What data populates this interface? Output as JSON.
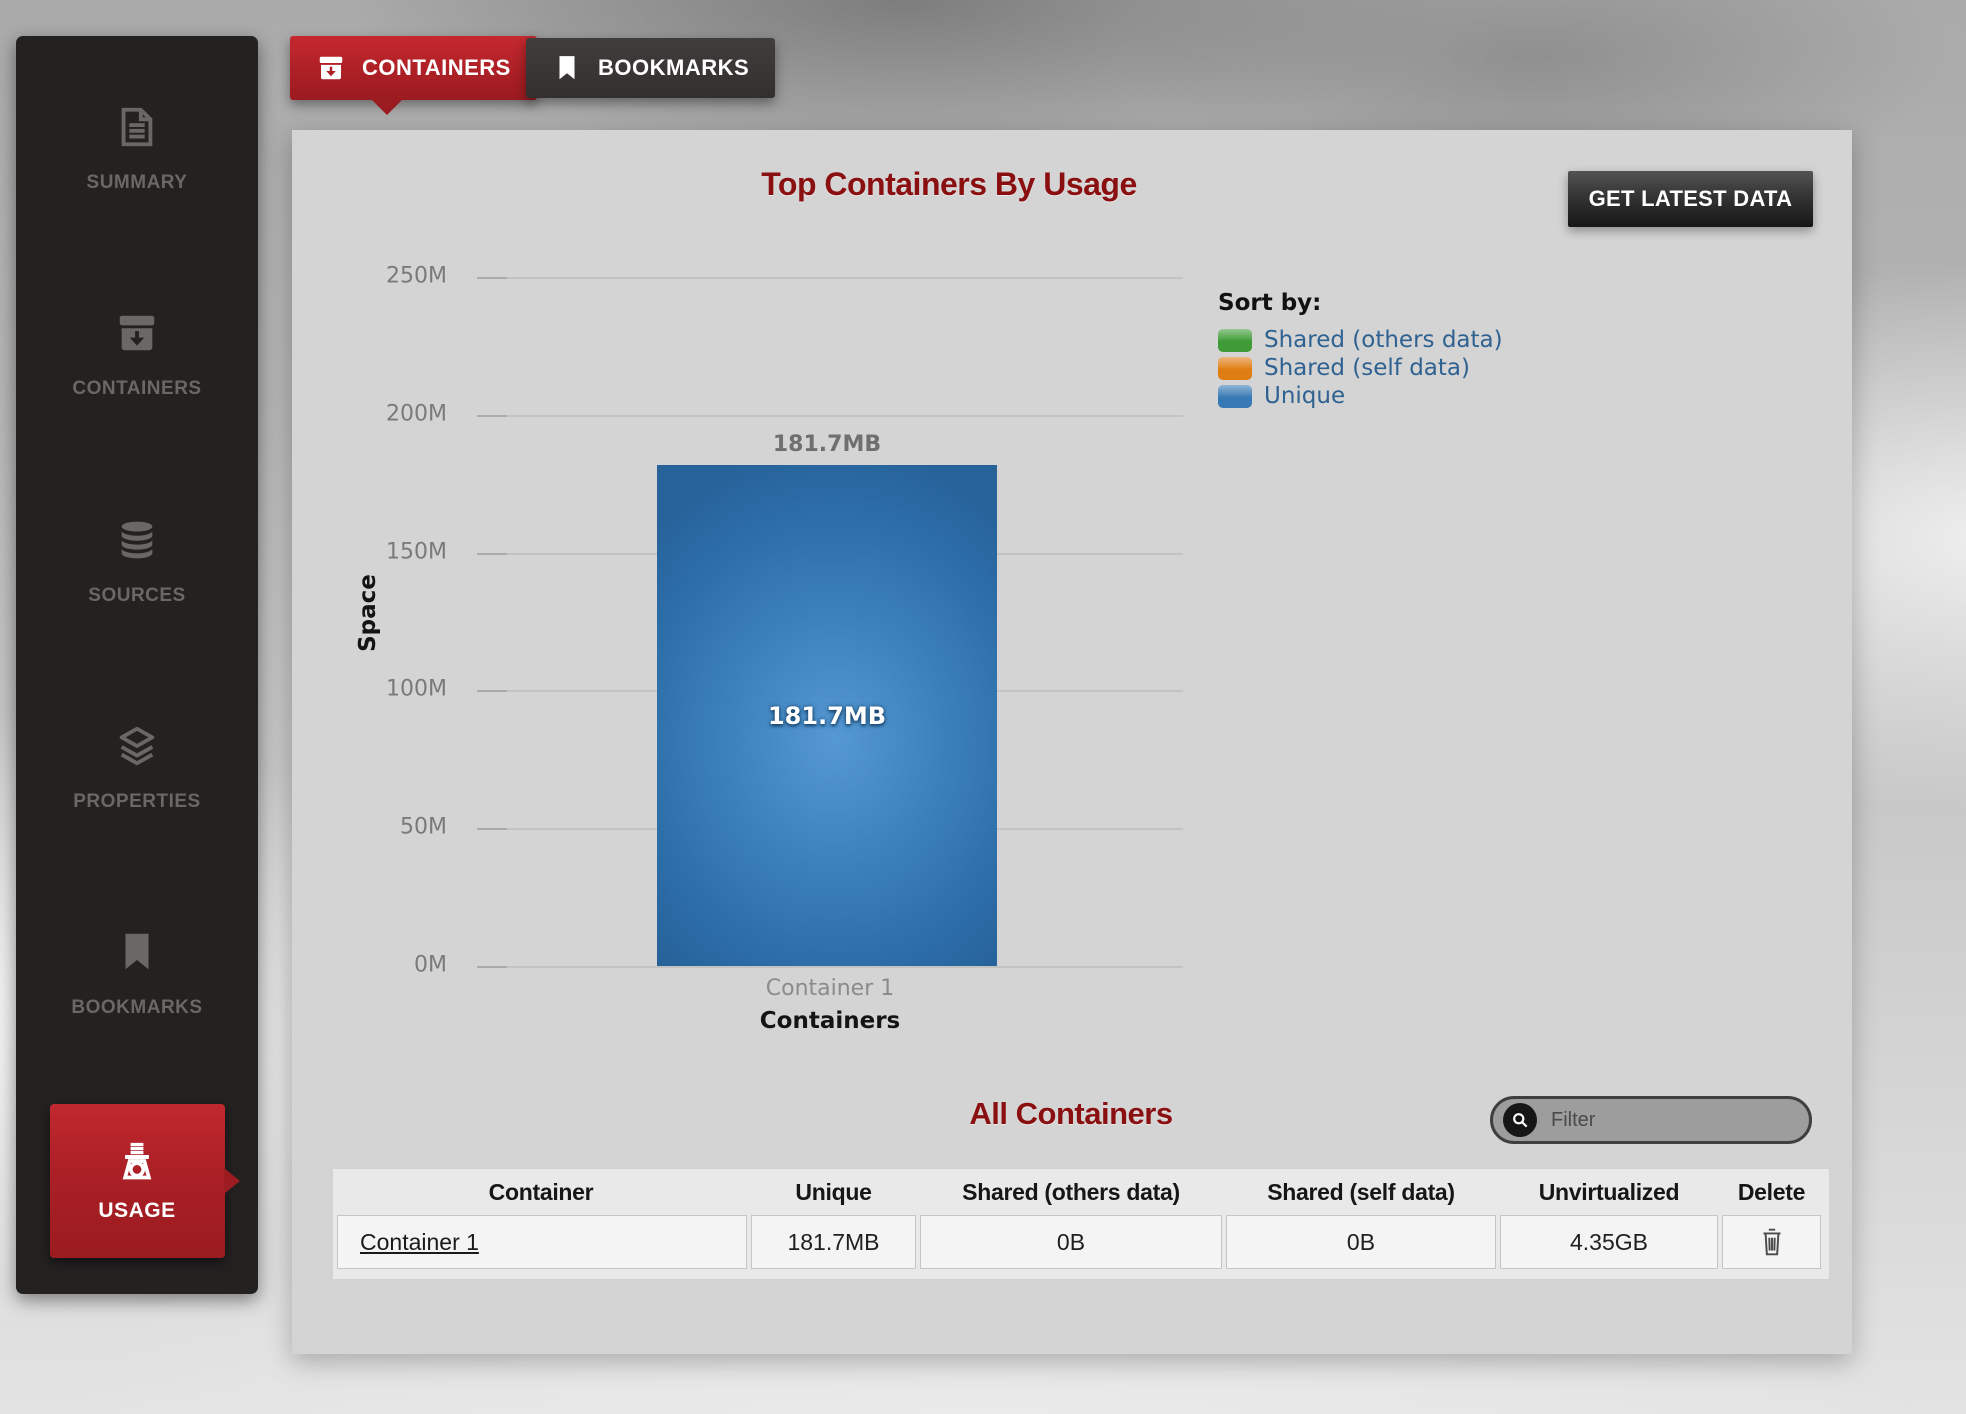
{
  "sidebar": {
    "items": [
      {
        "label": "SUMMARY",
        "icon": "document-icon"
      },
      {
        "label": "CONTAINERS",
        "icon": "archive-box-icon"
      },
      {
        "label": "SOURCES",
        "icon": "database-icon"
      },
      {
        "label": "PROPERTIES",
        "icon": "layers-icon"
      },
      {
        "label": "BOOKMARKS",
        "icon": "bookmark-icon"
      },
      {
        "label": "USAGE",
        "icon": "scale-icon",
        "active": true
      }
    ]
  },
  "tabs": [
    {
      "label": "CONTAINERS",
      "icon": "archive-box-icon",
      "active": true,
      "color": "#ad2026"
    },
    {
      "label": "BOOKMARKS",
      "icon": "bookmark-icon",
      "active": false,
      "color": "#383434"
    }
  ],
  "panel": {
    "title": "Top Containers By Usage",
    "get_latest_button": "GET LATEST DATA",
    "legend": {
      "title": "Sort by:",
      "items": [
        {
          "label": "Shared (others data)",
          "color": "#3e9b35"
        },
        {
          "label": "Shared (self data)",
          "color": "#df7d12"
        },
        {
          "label": "Unique",
          "color": "#3779b4"
        }
      ]
    },
    "all_containers": {
      "title": "All Containers",
      "filter_placeholder": "Filter"
    },
    "table": {
      "headers": [
        "Container",
        "Unique",
        "Shared (others data)",
        "Shared (self data)",
        "Unvirtualized",
        "Delete"
      ],
      "rows": [
        {
          "container": "Container 1",
          "unique": "181.7MB",
          "shared_others": "0B",
          "shared_self": "0B",
          "unvirtualized": "4.35GB",
          "delete_icon": "trash-icon"
        }
      ]
    }
  },
  "chart_data": {
    "type": "bar",
    "title": "Top Containers By Usage",
    "categories": [
      "Container 1"
    ],
    "series": [
      {
        "name": "Unique",
        "values_mb": [
          181.7
        ],
        "color": "#3779b4"
      }
    ],
    "bar_labels": [
      "181.7MB"
    ],
    "xlabel": "Containers",
    "ylabel": "Space",
    "yticks": [
      "250M",
      "200M",
      "150M",
      "100M",
      "50M",
      "0M"
    ],
    "ylim_mb": [
      0,
      250
    ],
    "grid": true,
    "legend_position": "right"
  },
  "colors": {
    "accent_red": "#ad2026",
    "heading_red": "#8a0f10",
    "sidebar_bg": "#242121",
    "panel_bg": "#d4d4d4",
    "bar_blue": "#3779b4",
    "legend_text": "#2f6191"
  }
}
